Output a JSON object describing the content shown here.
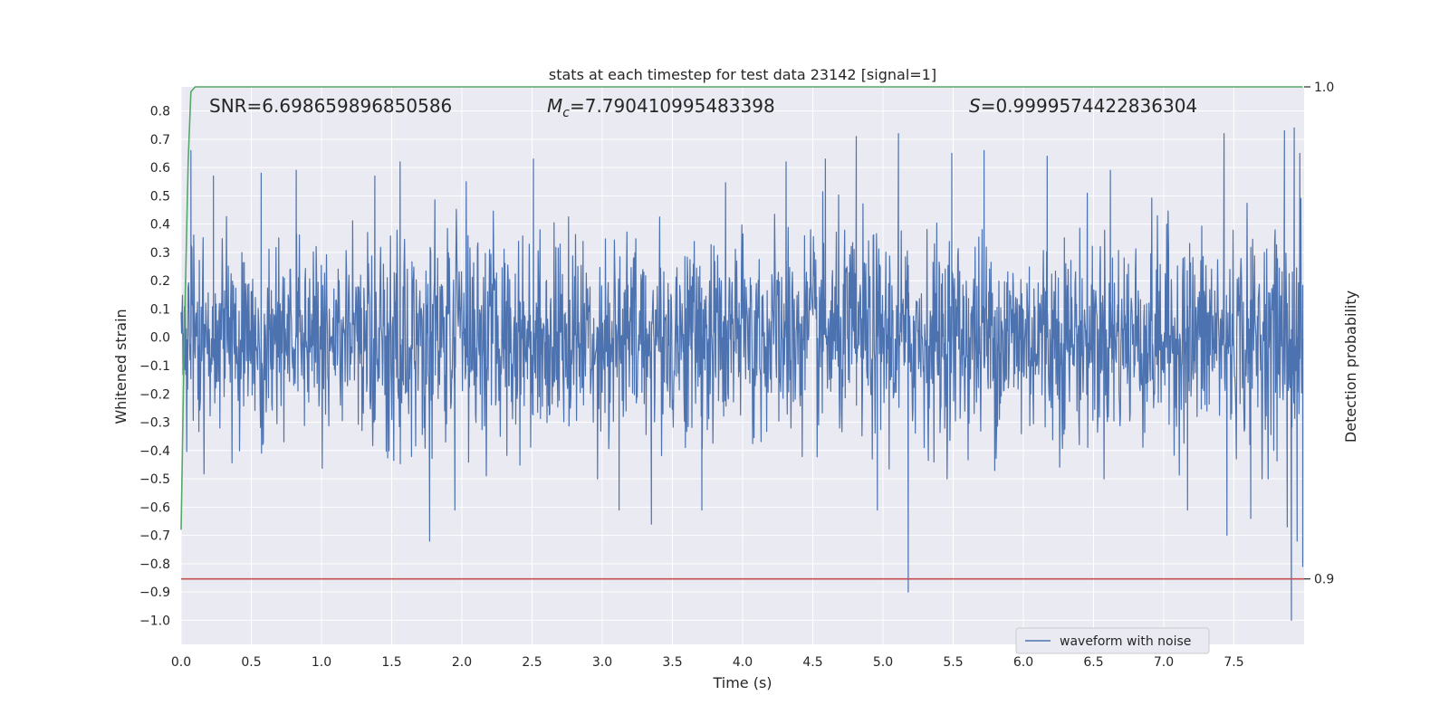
{
  "chart_data": {
    "type": "line",
    "title": "stats at each timestep for test data 23142 [signal=1]",
    "xlabel": "Time (s)",
    "ylabel": "Whitened strain",
    "y2label": "Detection probability",
    "xlim": [
      0.0,
      8.0
    ],
    "ylim": [
      -1.085,
      0.885
    ],
    "y2lim": [
      0.8867,
      1.0
    ],
    "x_ticks": [
      0.0,
      0.5,
      1.0,
      1.5,
      2.0,
      2.5,
      3.0,
      3.5,
      4.0,
      4.5,
      5.0,
      5.5,
      6.0,
      6.5,
      7.0,
      7.5
    ],
    "y_ticks": [
      0.8,
      0.7,
      0.6,
      0.5,
      0.4,
      0.3,
      0.2,
      0.1,
      0.0,
      -0.1,
      -0.2,
      -0.3,
      -0.4,
      -0.5,
      -0.6,
      -0.7,
      -0.8,
      -0.9,
      -1.0
    ],
    "y_tick_labels": [
      "0.8",
      "0.7",
      "0.6",
      "0.5",
      "0.4",
      "0.3",
      "0.2",
      "0.1",
      "0.0",
      "−0.1",
      "−0.2",
      "−0.3",
      "−0.4",
      "−0.5",
      "−0.6",
      "−0.7",
      "−0.8",
      "−0.9",
      "−1.0"
    ],
    "y2_ticks": [
      1.0,
      0.9
    ],
    "y2_tick_labels": [
      "1.0",
      "0.9"
    ],
    "grid": true,
    "legend_position": "bottom-right",
    "annotations": {
      "snr": "SNR=6.698659896850586",
      "mc_symbol": "M",
      "mc_subscript": "c",
      "mc_value": "=7.790410995483398",
      "s_symbol": "S",
      "s_value": "=0.9999574422836304"
    },
    "series": [
      {
        "name": "waveform with noise",
        "axis": "left",
        "color": "#4c72b0",
        "generator": "noise",
        "x_range": [
          0.0,
          7.99
        ],
        "typical_amplitude": 0.18,
        "envelope_min": -0.5,
        "envelope_max": 0.55,
        "peaks": [
          {
            "x": 0.07,
            "y": 0.66
          },
          {
            "x": 0.23,
            "y": 0.57
          },
          {
            "x": 0.57,
            "y": 0.58
          },
          {
            "x": 0.82,
            "y": 0.59
          },
          {
            "x": 1.38,
            "y": 0.57
          },
          {
            "x": 1.56,
            "y": 0.62
          },
          {
            "x": 1.77,
            "y": -0.72
          },
          {
            "x": 1.95,
            "y": -0.61
          },
          {
            "x": 2.51,
            "y": 0.63
          },
          {
            "x": 3.12,
            "y": -0.61
          },
          {
            "x": 3.35,
            "y": -0.66
          },
          {
            "x": 3.71,
            "y": -0.61
          },
          {
            "x": 4.31,
            "y": 0.62
          },
          {
            "x": 4.59,
            "y": 0.63
          },
          {
            "x": 4.81,
            "y": 0.71
          },
          {
            "x": 4.96,
            "y": -0.61
          },
          {
            "x": 5.11,
            "y": 0.72
          },
          {
            "x": 5.18,
            "y": -0.9
          },
          {
            "x": 5.49,
            "y": 0.65
          },
          {
            "x": 5.72,
            "y": 0.66
          },
          {
            "x": 6.17,
            "y": 0.64
          },
          {
            "x": 6.62,
            "y": 0.59
          },
          {
            "x": 7.17,
            "y": -0.61
          },
          {
            "x": 7.43,
            "y": 0.72
          },
          {
            "x": 7.45,
            "y": -0.7
          },
          {
            "x": 7.62,
            "y": -0.64
          },
          {
            "x": 7.86,
            "y": 0.73
          },
          {
            "x": 7.88,
            "y": -0.67
          },
          {
            "x": 7.91,
            "y": -1.0
          },
          {
            "x": 7.93,
            "y": 0.74
          },
          {
            "x": 7.95,
            "y": -0.72
          },
          {
            "x": 7.97,
            "y": 0.65
          },
          {
            "x": 7.99,
            "y": -0.81
          }
        ]
      },
      {
        "name": "",
        "axis": "right",
        "color": "#55a868",
        "points": [
          {
            "x": 0.0,
            "y": 0.91
          },
          {
            "x": 0.02,
            "y": 0.945
          },
          {
            "x": 0.05,
            "y": 0.985
          },
          {
            "x": 0.07,
            "y": 0.999
          },
          {
            "x": 0.1,
            "y": 1.0
          },
          {
            "x": 7.99,
            "y": 1.0
          }
        ]
      },
      {
        "name": "",
        "axis": "right",
        "color": "#c44e52",
        "points": [
          {
            "x": 0.0,
            "y": 0.9
          },
          {
            "x": 8.0,
            "y": 0.9
          }
        ]
      }
    ]
  }
}
